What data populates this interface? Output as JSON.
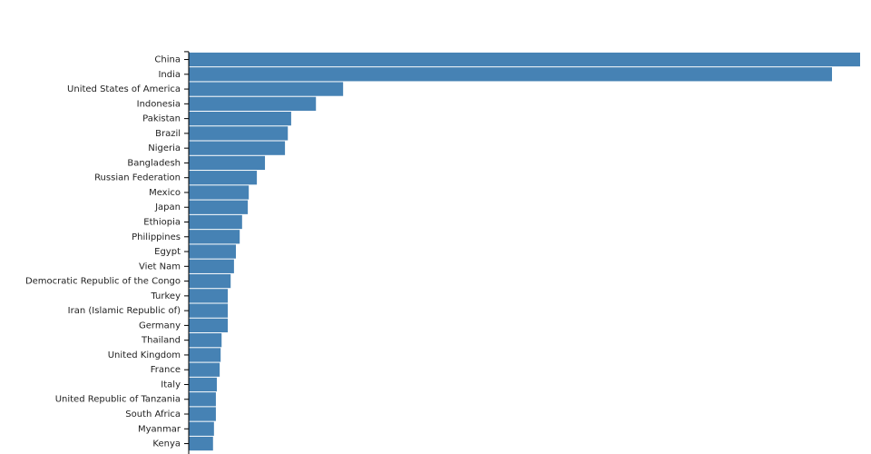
{
  "chart_data": {
    "type": "barh",
    "categories": [
      "China",
      "India",
      "United States of America",
      "Indonesia",
      "Pakistan",
      "Brazil",
      "Nigeria",
      "Bangladesh",
      "Russian Federation",
      "Mexico",
      "Japan",
      "Ethiopia",
      "Philippines",
      "Egypt",
      "Viet Nam",
      "Democratic Republic of the Congo",
      "Turkey",
      "Iran (Islamic Republic of)",
      "Germany",
      "Thailand",
      "United Kingdom",
      "France",
      "Italy",
      "United Republic of Tanzania",
      "South Africa",
      "Myanmar",
      "Kenya"
    ],
    "values": [
      1409,
      1350,
      324,
      267,
      215,
      208,
      202,
      160,
      143,
      126,
      124,
      112,
      107,
      99,
      95,
      88,
      82,
      82,
      82,
      69,
      67,
      65,
      59,
      57,
      57,
      53,
      51
    ],
    "color": "#4682b4",
    "xlim": [
      0,
      1409
    ]
  }
}
